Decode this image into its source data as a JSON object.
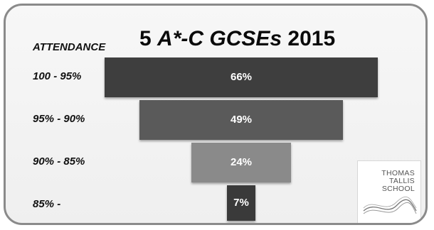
{
  "header": {
    "attendance_label": "ATTENDANCE",
    "title_prefix": "5 ",
    "title_italic": "A*-C GCSEs",
    "title_suffix": " 2015"
  },
  "logo": {
    "line1": "THOMAS",
    "line2": "TALLIS",
    "line3": "SCHOOL"
  },
  "colors": {
    "bar_100_95": "#3e3e3e",
    "bar_95_90": "#5a5a5a",
    "bar_90_85": "#8a8a8a",
    "bar_85": "#3a3a3a"
  },
  "chart_data": {
    "type": "bar",
    "orientation": "horizontal-funnel",
    "title": "5 A*-C GCSEs 2015",
    "ylabel": "ATTENDANCE",
    "categories": [
      "100 - 95%",
      "95% - 90%",
      "90% - 85%",
      "85% -"
    ],
    "values": [
      66,
      49,
      24,
      7
    ],
    "value_labels": [
      "66%",
      "49%",
      "24%",
      "7%"
    ],
    "unit": "%",
    "grid": false
  }
}
